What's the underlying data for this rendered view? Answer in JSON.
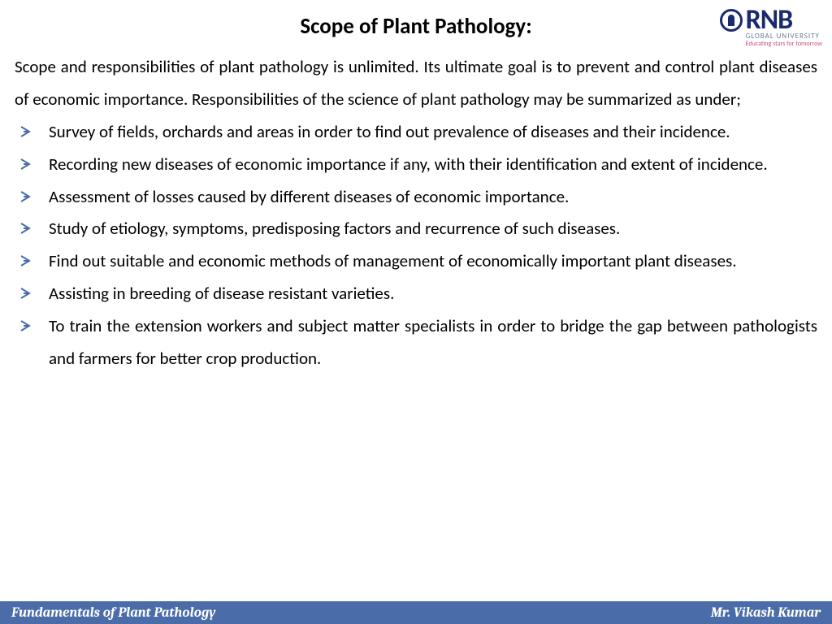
{
  "logo": {
    "name": "RNB",
    "subtitle": "GLOBAL UNIVERSITY",
    "tagline": "Educating stars for tomorrow",
    "primary_color": "#1a2b6d",
    "accent_color": "#c94f7c"
  },
  "title": "Scope of Plant Pathology:",
  "intro": "Scope and responsibilities of plant pathology is unlimited. Its ultimate goal is to prevent and control plant diseases of economic importance. Responsibilities of the science of plant pathology may be summarized as under;",
  "bullets": [
    "Survey of fields, orchards and areas in order to find out prevalence of diseases and their incidence.",
    "Recording new diseases of economic importance if any, with their identification and extent of incidence.",
    "Assessment of losses caused by different diseases of economic importance.",
    "Study of etiology, symptoms, predisposing factors and recurrence of such diseases.",
    "Find out suitable and economic methods of management of economically important plant diseases.",
    "Assisting in breeding of disease resistant varieties.",
    "To train the extension workers and subject matter specialists in order to bridge the gap between pathologists and farmers for better crop production."
  ],
  "footer": {
    "left": "Fundamentals of Plant Pathology",
    "right": "Mr. Vikash Kumar",
    "bg_color": "#4a6ca8",
    "text_color": "#ffffff"
  },
  "bullet_arrow_color": "#4a6ca8",
  "body_fontsize": 21,
  "title_fontsize": 27
}
